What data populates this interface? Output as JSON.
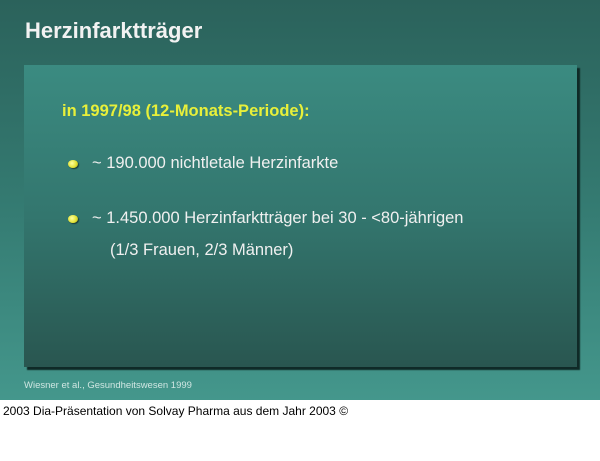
{
  "slide": {
    "title": "Herzinfarktträger",
    "subtitle": "in 1997/98 (12-Monats-Periode):",
    "bullets": [
      {
        "text": "~ 190.000 nichtletale Herzinfarkte"
      },
      {
        "text": "~ 1.450.000 Herzinfarktträger bei 30 - <80-jährigen",
        "continuation": "(1/3 Frauen, 2/3 Männer)"
      }
    ],
    "citation": "Wiesner et al., Gesundheitswesen 1999",
    "colors": {
      "background": "#347a71",
      "subtitle": "#e8f03a",
      "bullet": "#e0e030"
    }
  },
  "caption": "2003 Dia-Präsentation von Solvay Pharma aus dem Jahr 2003 ©"
}
